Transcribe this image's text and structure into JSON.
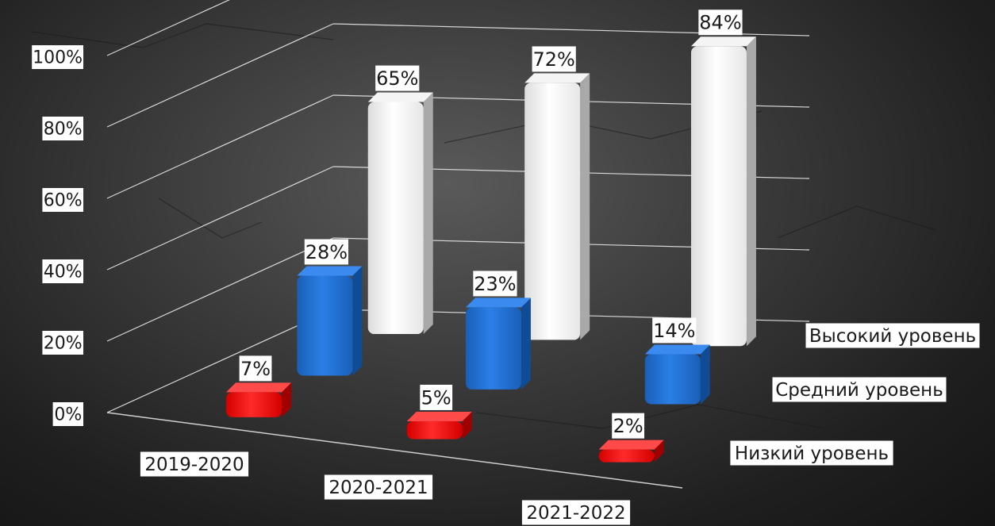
{
  "chart_data": {
    "type": "bar",
    "categories": [
      "2019-2020",
      "2020-2021",
      "2021-2022"
    ],
    "series": [
      {
        "name": "Высокий уровень",
        "values": [
          65,
          72,
          84
        ],
        "labels": [
          "65%",
          "72%",
          "84%"
        ],
        "color": "#ffffff"
      },
      {
        "name": "Средний уровень",
        "values": [
          28,
          23,
          14
        ],
        "labels": [
          "28%",
          "23%",
          "14%"
        ],
        "color": "#1f6fd1"
      },
      {
        "name": "Низкий уровень",
        "values": [
          7,
          5,
          2
        ],
        "labels": [
          "7%",
          "5%",
          "2%"
        ],
        "color": "#ff1a1a"
      }
    ],
    "ylim": [
      0,
      100
    ],
    "yticks": [
      "0%",
      "20%",
      "40%",
      "60%",
      "80%",
      "100%"
    ],
    "grid": true,
    "legend": "right",
    "projection": "3d"
  }
}
